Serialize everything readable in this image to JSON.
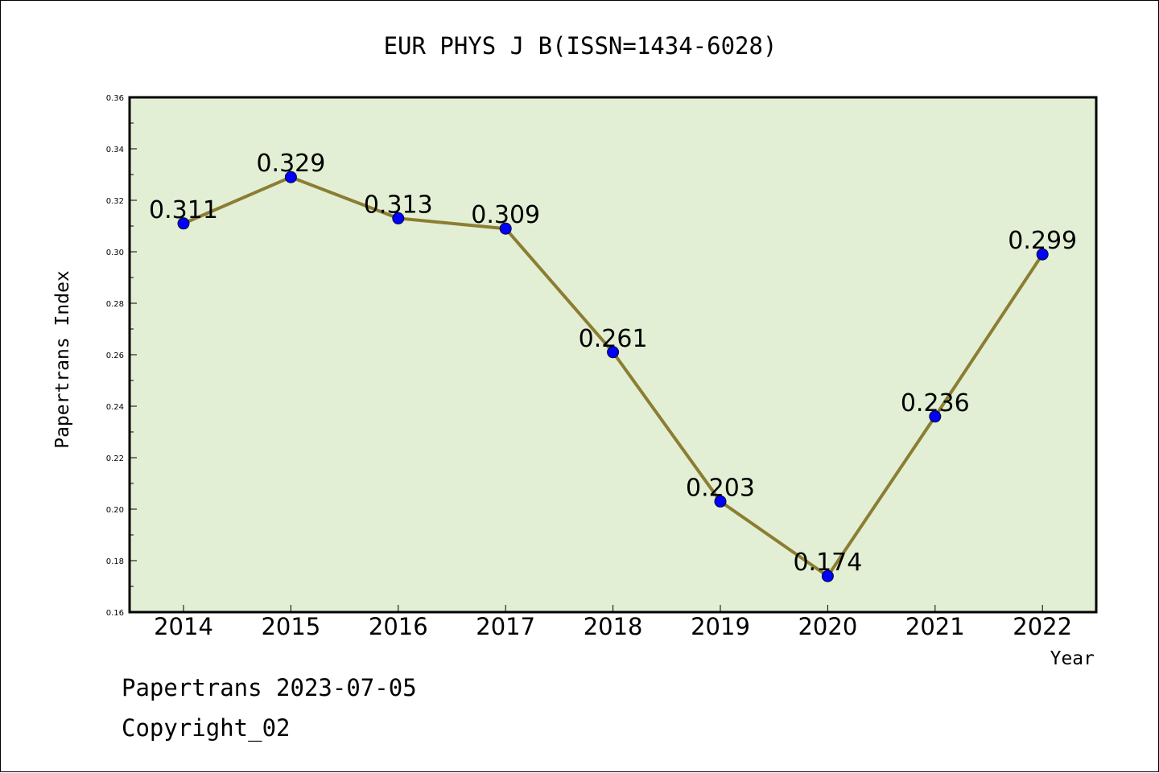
{
  "chart_data": {
    "type": "line",
    "title": "EUR PHYS J B(ISSN=1434-6028)",
    "xlabel": "Year",
    "ylabel": "Papertrans Index",
    "categories": [
      "2014",
      "2015",
      "2016",
      "2017",
      "2018",
      "2019",
      "2020",
      "2021",
      "2022"
    ],
    "values": [
      0.311,
      0.329,
      0.313,
      0.309,
      0.261,
      0.203,
      0.174,
      0.236,
      0.299
    ],
    "data_labels": [
      "0.311",
      "0.329",
      "0.313",
      "0.309",
      "0.261",
      "0.203",
      "0.174",
      "0.236",
      "0.299"
    ],
    "ylim": [
      0.16,
      0.36
    ],
    "yticks": [
      "0.16",
      "0.18",
      "0.20",
      "0.22",
      "0.24",
      "0.26",
      "0.28",
      "0.30",
      "0.32",
      "0.34",
      "0.36"
    ],
    "grid": false,
    "legend": "none",
    "colors": {
      "plot_background": "#e2efd4",
      "line": "#8b7d32",
      "marker": "#0000ff"
    }
  },
  "footer": {
    "date_line": "Papertrans 2023-07-05",
    "copyright": "Copyright_02"
  }
}
